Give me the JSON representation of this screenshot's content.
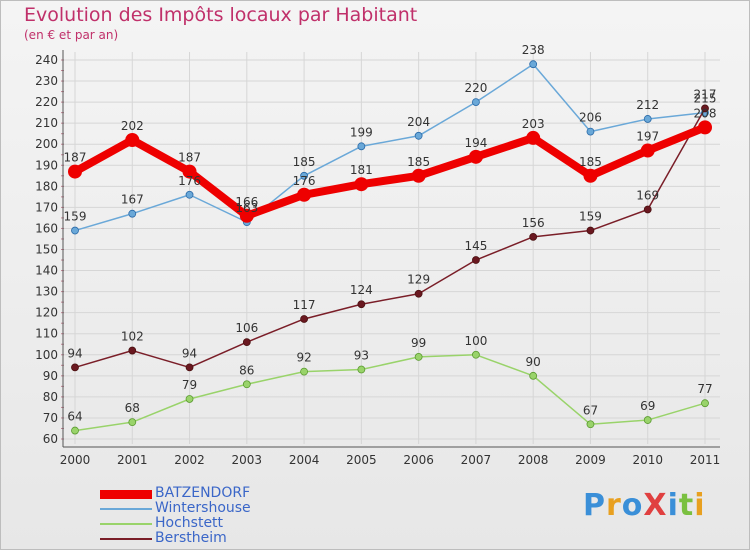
{
  "title": "Evolution des Impôts locaux par Habitant",
  "subtitle": "(en € et par an)",
  "logo": "ProXiti",
  "chart_data": {
    "type": "line",
    "title": "Evolution des Impôts locaux par Habitant",
    "subtitle": "(en € et par an)",
    "x": [
      "2000",
      "2001",
      "2002",
      "2003",
      "2004",
      "2005",
      "2006",
      "2007",
      "2008",
      "2009",
      "2010",
      "2011"
    ],
    "ylim": [
      60,
      240
    ],
    "yticks": [
      60,
      70,
      80,
      90,
      100,
      110,
      120,
      130,
      140,
      150,
      160,
      170,
      180,
      190,
      200,
      210,
      220,
      230,
      240
    ],
    "grid": true,
    "legend_position": "bottom-left",
    "series": [
      {
        "name": "Wintershouse",
        "color": "#6aa8d8",
        "values": [
          159,
          167,
          176,
          163,
          185,
          199,
          204,
          220,
          238,
          206,
          212,
          215
        ],
        "labels": [
          "159",
          "167",
          "176",
          "163",
          "185",
          "199",
          "204",
          "220",
          "238",
          "206",
          "212",
          "215"
        ]
      },
      {
        "name": "Hochstett",
        "color": "#99d36a",
        "values": [
          64,
          68,
          79,
          86,
          92,
          93,
          99,
          100,
          90,
          67,
          69,
          77
        ],
        "labels": [
          "64",
          "68",
          "79",
          "86",
          "92",
          "93",
          "99",
          "100",
          "90",
          "67",
          "69",
          "77"
        ]
      },
      {
        "name": "Berstheim",
        "color": "#7a1e28",
        "values": [
          94,
          102,
          94,
          106,
          117,
          124,
          129,
          145,
          156,
          159,
          169,
          217
        ],
        "labels": [
          "94",
          "102",
          "94",
          "106",
          "117",
          "124",
          "129",
          "145",
          "156",
          "159",
          "169",
          "217"
        ]
      },
      {
        "name": "BATZENDORF",
        "color": "#ee0000",
        "values": [
          187,
          202,
          187,
          166,
          176,
          181,
          185,
          194,
          203,
          185,
          197,
          208
        ],
        "labels": [
          "187",
          "202",
          "187",
          "166",
          "176",
          "181",
          "185",
          "194",
          "203",
          "185",
          "197",
          "208"
        ]
      }
    ]
  }
}
